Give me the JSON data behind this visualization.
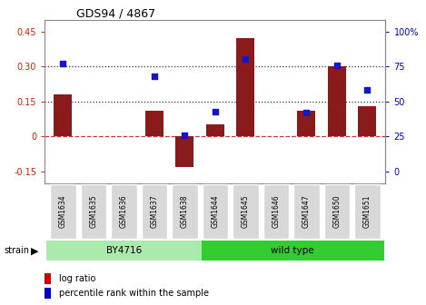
{
  "title": "GDS94 / 4867",
  "samples": [
    "GSM1634",
    "GSM1635",
    "GSM1636",
    "GSM1637",
    "GSM1638",
    "GSM1644",
    "GSM1645",
    "GSM1646",
    "GSM1647",
    "GSM1650",
    "GSM1651"
  ],
  "log_ratios": [
    0.18,
    0.0,
    0.0,
    0.11,
    -0.13,
    0.05,
    0.42,
    0.0,
    0.11,
    0.3,
    0.13
  ],
  "percentile_ranks": [
    77,
    null,
    null,
    68,
    26,
    43,
    80,
    null,
    42,
    76,
    58
  ],
  "ylim_left": [
    -0.2,
    0.5
  ],
  "ylim_right": [
    -13.33,
    70.0
  ],
  "yticks_left": [
    -0.15,
    0.0,
    0.15,
    0.3,
    0.45
  ],
  "yticks_left_labels": [
    "-0.15",
    "0",
    "0.15",
    "0.30",
    "0.45"
  ],
  "yticks_right": [
    0,
    25,
    50,
    75,
    100
  ],
  "yticks_right_labels": [
    "0",
    "25",
    "50",
    "75",
    "100%"
  ],
  "bar_color": "#8B1A1A",
  "scatter_color": "#1515CD",
  "zero_line_color": "#CC3333",
  "dotted_line_color": "#333333",
  "bar_width": 0.6,
  "right_yaxis_color": "#0000CC",
  "left_yaxis_color": "#CC2200",
  "by4716_color": "#AAEAAA",
  "wildtype_color": "#33CC33",
  "strain_label": "strain",
  "by4716_label": "BY4716",
  "wildtype_label": "wild type",
  "legend_bar_label": "log ratio",
  "legend_pct_label": "percentile rank within the sample",
  "legend_bar_color": "#CC0000",
  "legend_pct_color": "#0000CC"
}
